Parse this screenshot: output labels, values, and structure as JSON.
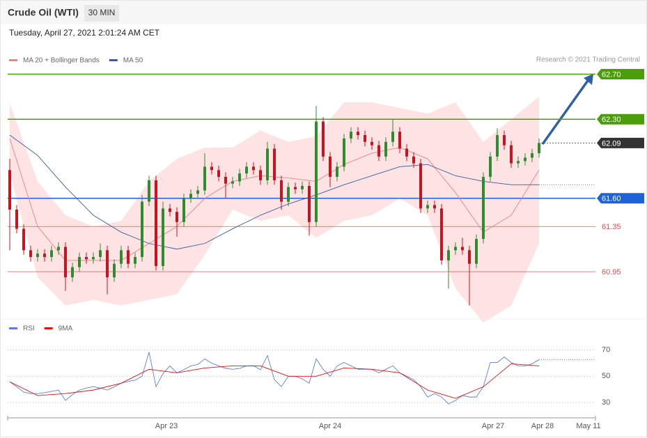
{
  "header": {
    "title": "Crude Oil (WTI)",
    "timeframe": "30 MIN",
    "datetime": "Tuesday, April 27, 2021 2:01:24 AM CET",
    "credit": "Research © 2021 Trading Central"
  },
  "chart_data": [
    {
      "type": "candlestick",
      "candles": {
        "open": [
          61.85,
          61.5,
          61.33,
          61.14,
          61.08,
          61.11,
          61.08,
          61.14,
          61.17,
          60.9,
          60.99,
          61.08,
          61.06,
          61.08,
          61.14,
          60.9,
          61.02,
          61.14,
          61.02,
          61.08,
          61.57,
          61.76,
          61.0,
          61.51,
          61.48,
          61.39,
          61.6,
          61.64,
          61.67,
          61.88,
          61.85,
          61.79,
          61.73,
          61.75,
          61.82,
          61.88,
          61.85,
          61.76,
          62.04,
          61.76,
          61.57,
          61.7,
          61.68,
          61.71,
          61.39,
          62.28,
          61.97,
          61.79,
          61.88,
          62.13,
          62.19,
          62.16,
          62.1,
          62.07,
          61.97,
          62.1,
          62.19,
          62.04,
          61.97,
          61.91,
          61.51,
          61.54,
          61.51,
          61.05,
          61.14,
          61.17,
          61.14,
          61.02,
          61.24,
          61.79,
          61.97,
          62.16,
          62.07,
          61.91,
          61.93,
          61.96,
          62.0
        ],
        "high": [
          61.95,
          61.54,
          61.37,
          61.18,
          61.15,
          61.15,
          61.18,
          61.21,
          61.21,
          61.03,
          61.12,
          61.12,
          61.12,
          61.2,
          61.18,
          61.06,
          61.18,
          61.18,
          61.12,
          61.63,
          61.8,
          61.8,
          61.57,
          61.55,
          61.52,
          61.64,
          61.68,
          61.71,
          62.0,
          61.92,
          61.89,
          61.83,
          61.79,
          61.86,
          61.92,
          61.92,
          61.89,
          62.1,
          62.08,
          61.8,
          61.74,
          61.74,
          61.75,
          61.75,
          62.42,
          62.32,
          62.01,
          61.92,
          62.17,
          62.23,
          62.23,
          62.2,
          62.14,
          62.11,
          62.14,
          62.3,
          62.23,
          62.08,
          62.01,
          61.95,
          61.58,
          61.58,
          61.55,
          61.18,
          61.21,
          61.25,
          61.18,
          61.28,
          61.83,
          62.01,
          62.22,
          62.2,
          62.11,
          61.97,
          62.0,
          62.04,
          62.13
        ],
        "low": [
          61.14,
          61.29,
          61.1,
          61.04,
          61.04,
          61.04,
          61.04,
          61.1,
          60.78,
          60.86,
          60.95,
          61.02,
          61.02,
          61.04,
          60.75,
          60.86,
          60.98,
          60.98,
          60.98,
          61.04,
          61.53,
          60.96,
          60.96,
          61.44,
          61.26,
          61.35,
          61.56,
          61.6,
          61.63,
          61.81,
          61.75,
          61.6,
          61.69,
          61.71,
          61.78,
          61.81,
          61.72,
          61.72,
          61.72,
          61.5,
          61.53,
          61.64,
          61.64,
          61.27,
          61.35,
          61.93,
          61.7,
          61.75,
          61.84,
          62.09,
          62.12,
          62.06,
          62.03,
          61.93,
          61.93,
          62.06,
          62.0,
          61.93,
          61.87,
          61.47,
          61.47,
          61.47,
          61.01,
          60.8,
          61.1,
          61.1,
          60.65,
          60.98,
          61.2,
          61.75,
          61.93,
          62.03,
          61.87,
          61.87,
          61.89,
          61.92,
          61.96
        ],
        "close": [
          61.5,
          61.33,
          61.14,
          61.08,
          61.11,
          61.08,
          61.14,
          61.17,
          60.9,
          60.99,
          61.08,
          61.06,
          61.08,
          61.14,
          60.9,
          61.02,
          61.14,
          61.02,
          61.08,
          61.57,
          61.76,
          61.0,
          61.51,
          61.48,
          61.39,
          61.6,
          61.64,
          61.67,
          61.88,
          61.85,
          61.79,
          61.73,
          61.75,
          61.82,
          61.88,
          61.85,
          61.76,
          62.04,
          61.76,
          61.57,
          61.7,
          61.68,
          61.71,
          61.39,
          62.28,
          61.97,
          61.79,
          61.88,
          62.13,
          62.19,
          62.16,
          62.1,
          62.07,
          61.97,
          62.1,
          62.19,
          62.04,
          61.97,
          61.91,
          61.51,
          61.54,
          61.51,
          61.05,
          61.14,
          61.17,
          61.14,
          61.02,
          61.24,
          61.79,
          61.97,
          62.16,
          62.07,
          61.91,
          61.93,
          61.96,
          62.0,
          62.09
        ],
        "up_color": "#2e8b2e",
        "down_color": "#c8141e"
      },
      "series": [
        {
          "name": "MA 20 + Bollinger Bands",
          "color": "#f08080",
          "band_color": "#fde3e3",
          "x": [
            0,
            4,
            8,
            12,
            16,
            20,
            24,
            28,
            32,
            36,
            40,
            44,
            48,
            52,
            56,
            60,
            64,
            68,
            72,
            76
          ],
          "values": [
            62.13,
            61.35,
            61.05,
            61.05,
            61.05,
            61.2,
            61.35,
            61.6,
            61.75,
            61.8,
            61.78,
            61.75,
            61.9,
            62.0,
            62.05,
            61.95,
            61.65,
            61.3,
            61.45,
            61.85
          ],
          "upper": [
            62.44,
            61.75,
            61.45,
            61.35,
            61.4,
            61.75,
            61.95,
            62.05,
            62.05,
            62.2,
            62.1,
            62.15,
            62.45,
            62.45,
            62.4,
            62.35,
            62.45,
            62.1,
            62.3,
            62.5
          ],
          "lower": [
            61.82,
            60.9,
            60.65,
            60.7,
            60.65,
            60.7,
            60.75,
            61.1,
            61.5,
            61.4,
            61.45,
            61.25,
            61.4,
            61.45,
            61.6,
            61.45,
            60.8,
            60.5,
            60.65,
            61.2
          ]
        },
        {
          "name": "MA 50",
          "color": "#3a5a9a",
          "x": [
            0,
            4,
            8,
            12,
            16,
            20,
            24,
            28,
            32,
            36,
            40,
            44,
            48,
            52,
            56,
            60,
            64,
            68,
            72,
            76
          ],
          "values": [
            62.16,
            61.98,
            61.7,
            61.45,
            61.3,
            61.2,
            61.15,
            61.2,
            61.33,
            61.45,
            61.55,
            61.63,
            61.72,
            61.8,
            61.88,
            61.9,
            61.8,
            61.75,
            61.72,
            61.72
          ]
        }
      ],
      "levels": [
        {
          "value": 62.7,
          "label": "62.70",
          "color": "#4a9e0a"
        },
        {
          "value": 62.3,
          "label": "62.30",
          "color": "#4a9e0a"
        },
        {
          "value": 61.6,
          "label": "61.60",
          "color": "#1e62d8"
        },
        {
          "value": 61.35,
          "label": "61.35",
          "color": "#e05050"
        },
        {
          "value": 60.95,
          "label": "60.95",
          "color": "#e05050"
        }
      ],
      "last_price": 62.09,
      "xlim": [
        -0.3,
        84.1
      ],
      "ylim": [
        60.55,
        63.11
      ],
      "xticks": [
        {
          "value": 22.5,
          "label": "Apr 23"
        },
        {
          "value": 46,
          "label": "Apr 24"
        },
        {
          "value": 69.4,
          "label": "Apr 27"
        },
        {
          "value": 76.5,
          "label": "Apr 28"
        },
        {
          "value": 83.1,
          "label": "May 11"
        }
      ]
    },
    {
      "type": "line",
      "series": [
        {
          "name": "RSI",
          "color": "#5b7fdc",
          "values": [
            45.8,
            42,
            38,
            36.8,
            36.8,
            37.5,
            38.5,
            39.5,
            31.6,
            36,
            39.5,
            41,
            42.1,
            41,
            39.5,
            42,
            44.7,
            46,
            47,
            50,
            68.4,
            42.1,
            52,
            57.9,
            52.6,
            55,
            57.9,
            59,
            63.2,
            60,
            57.9,
            56,
            55.3,
            56,
            57.9,
            58,
            55,
            65.8,
            47.4,
            42.1,
            50,
            50,
            48,
            44.7,
            63.2,
            55.3,
            50,
            57.9,
            60.5,
            57.9,
            55.3,
            55.3,
            55.3,
            52.6,
            55.3,
            58,
            52.6,
            50,
            47.4,
            42.1,
            34.2,
            36.8,
            34.2,
            28.9,
            31.6,
            35.3,
            34.2,
            34.2,
            42.1,
            60.5,
            60.5,
            64.7,
            60.5,
            57.9,
            57.9,
            59.5,
            62.6
          ]
        },
        {
          "name": "9MA",
          "color": "#e01010",
          "x": [
            0,
            4,
            8,
            12,
            16,
            20,
            24,
            28,
            32,
            36,
            40,
            44,
            48,
            52,
            56,
            60,
            64,
            68,
            72,
            76
          ],
          "values": [
            45.8,
            35.3,
            36.8,
            39.5,
            44.7,
            55.3,
            52.6,
            56.3,
            57.9,
            57.9,
            50,
            50,
            56.3,
            55.3,
            52.6,
            39.5,
            33.2,
            42,
            59.5,
            57.9
          ]
        }
      ],
      "xlim": [
        -0.3,
        84.1
      ],
      "ylim": [
        21,
        82
      ],
      "yticks": [
        30,
        50,
        70
      ]
    }
  ]
}
